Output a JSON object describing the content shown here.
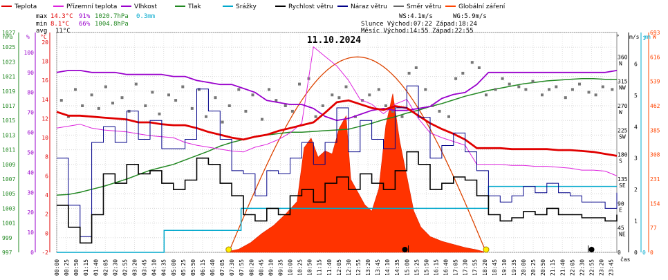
{
  "chart_data": {
    "type": "line",
    "title": "11.10.2024",
    "legend": [
      {
        "key": "temperature",
        "label": "Teplota",
        "color": "#e00000"
      },
      {
        "key": "dewpoint",
        "label": "Přízemní teplota",
        "color": "#dd22dd"
      },
      {
        "key": "humidity",
        "label": "Vlhkost",
        "color": "#9900cc"
      },
      {
        "key": "pressure",
        "label": "Tlak",
        "color": "#228822"
      },
      {
        "key": "rain",
        "label": "Srážky",
        "color": "#00a8cc"
      },
      {
        "key": "wind_speed",
        "label": "Rychlost větru",
        "color": "#000000"
      },
      {
        "key": "wind_gust",
        "label": "Náraz větru",
        "color": "#000088"
      },
      {
        "key": "wind_dir",
        "label": "Směr větru",
        "color": "#666666"
      },
      {
        "key": "radiation",
        "label": "Globální záření",
        "color": "#ff4400"
      }
    ],
    "stats": {
      "max": {
        "label": "max",
        "temp": "14.3°C",
        "hum": "91%",
        "press": "1020.7hPa",
        "rain": "0.3mm"
      },
      "min": {
        "label": "min",
        "temp": "8.1°C",
        "hum": "66%",
        "press": "1004.8hPa"
      },
      "avg": {
        "label": "avg",
        "temp": "11°C"
      }
    },
    "info": {
      "ws": "WS:4.1m/s",
      "wg": "WG:5.9m/s",
      "sun": "Slunce Východ:07:22  Západ:18:24",
      "moon": "Měsíc  Východ:14:55  Západ:22:55"
    },
    "axes": {
      "hpa": {
        "unit": "hPa",
        "ticks": [
          "1027",
          "1025",
          "1023",
          "1021",
          "1019",
          "1017",
          "1015",
          "1013",
          "1011",
          "1009",
          "1007",
          "1005",
          "1003",
          "1001",
          "999",
          "997"
        ],
        "color": "#228822"
      },
      "pct": {
        "unit": "%",
        "ticks": [
          "100",
          "90",
          "80",
          "70",
          "60",
          "50",
          "40",
          "30",
          "20",
          "10",
          "0"
        ],
        "color": "#9900cc"
      },
      "degc": {
        "unit": "°C",
        "ticks": [
          "20",
          "18",
          "16",
          "14",
          "12",
          "10",
          "8",
          "6",
          "4",
          "2",
          "0",
          "-2"
        ],
        "color": "#e00000"
      },
      "dir": {
        "unit": "°",
        "ticks": [
          "360",
          "315",
          "270",
          "225",
          "180",
          "135",
          "90",
          "45",
          "0"
        ],
        "names": [
          "N",
          "NW",
          "W",
          "SW",
          "S",
          "SE",
          "E",
          "NE",
          ""
        ]
      },
      "ms": {
        "unit": "m/s",
        "ticks": [
          "6",
          "5",
          "4",
          "3",
          "2",
          "1",
          "0"
        ]
      },
      "mm": {
        "unit": "mm",
        "ticks": [
          "1",
          "0"
        ],
        "color": "#00a8cc"
      },
      "wm2": {
        "unit": "W",
        "ticks": [
          "693",
          "616",
          "539",
          "462",
          "385",
          "308",
          "231",
          "154",
          "77",
          "0"
        ],
        "color": "#ff4400"
      },
      "time_label": "čas"
    },
    "x_tick_labels": [
      "00:00",
      "00:25",
      "00:50",
      "01:15",
      "01:40",
      "02:05",
      "02:30",
      "02:55",
      "03:20",
      "03:45",
      "04:10",
      "04:35",
      "05:00",
      "05:25",
      "05:50",
      "06:15",
      "06:40",
      "07:05",
      "07:30",
      "07:55",
      "08:20",
      "08:45",
      "09:10",
      "09:35",
      "10:00",
      "10:25",
      "10:50",
      "11:15",
      "11:40",
      "12:05",
      "12:30",
      "12:55",
      "13:20",
      "13:45",
      "14:10",
      "14:35",
      "15:00",
      "15:25",
      "15:50",
      "16:15",
      "16:40",
      "17:05",
      "17:30",
      "17:55",
      "18:20",
      "18:45",
      "19:10",
      "19:35",
      "20:00",
      "20:25",
      "20:50",
      "21:15",
      "21:40",
      "22:05",
      "22:30",
      "22:55",
      "23:20",
      "23:45"
    ],
    "series": {
      "temperature_hours": [
        0,
        0.5,
        1,
        1.5,
        2,
        2.5,
        3,
        3.5,
        4,
        4.5,
        5,
        5.5,
        6,
        6.5,
        7,
        7.5,
        8,
        8.5,
        9,
        9.5,
        10,
        10.5,
        11,
        11.5,
        12,
        12.5,
        13,
        13.5,
        14,
        14.5,
        15,
        15.5,
        16,
        16.5,
        17,
        17.5,
        18,
        18.5,
        19,
        19.5,
        20,
        20.5,
        21,
        21.5,
        22,
        22.5,
        23,
        23.5,
        24
      ],
      "temperature": [
        12.7,
        12.3,
        12.3,
        12.2,
        12.1,
        12.0,
        11.9,
        11.6,
        11.6,
        11.4,
        11.3,
        11.3,
        11.0,
        10.6,
        10.3,
        10.0,
        9.8,
        10.1,
        10.3,
        10.7,
        11.0,
        11.3,
        11.6,
        12.6,
        13.7,
        13.9,
        13.5,
        13.1,
        12.9,
        13.3,
        13.1,
        12.3,
        11.5,
        10.9,
        10.4,
        9.8,
        8.9,
        8.9,
        8.9,
        8.8,
        8.8,
        8.8,
        8.8,
        8.7,
        8.7,
        8.6,
        8.5,
        8.3,
        8.1
      ],
      "dewpoint": [
        11.0,
        11.2,
        11.4,
        11.0,
        10.8,
        10.7,
        10.6,
        10.4,
        10.2,
        10.1,
        10.0,
        9.5,
        9.2,
        9.0,
        8.8,
        8.6,
        8.5,
        9.0,
        9.3,
        9.8,
        10.5,
        11.5,
        19.5,
        18.5,
        17.5,
        16.0,
        14.0,
        13.5,
        12.5,
        13.5,
        14.0,
        12.0,
        10.5,
        10.0,
        9.6,
        9.2,
        7.2,
        7.2,
        7.2,
        7.1,
        7.1,
        7.0,
        7.0,
        6.9,
        6.8,
        6.6,
        6.6,
        6.5,
        6.0
      ],
      "humidity": [
        90,
        91,
        91,
        90,
        90,
        90,
        89,
        89,
        89,
        89,
        88,
        88,
        86,
        85,
        84,
        84,
        82,
        80,
        76,
        75,
        74,
        74,
        72,
        68,
        66,
        67,
        69,
        71,
        72,
        71,
        71,
        72,
        73,
        77,
        79,
        80,
        84,
        90,
        90,
        90,
        90,
        90,
        90,
        90,
        90,
        90,
        90,
        90,
        91
      ],
      "pressure": [
        1004.8,
        1004.9,
        1005.2,
        1005.6,
        1006.0,
        1006.5,
        1007.0,
        1007.6,
        1008.2,
        1008.6,
        1009.0,
        1009.6,
        1010.2,
        1010.8,
        1011.5,
        1012.0,
        1012.4,
        1012.8,
        1013.0,
        1013.2,
        1013.4,
        1013.4,
        1013.5,
        1013.6,
        1013.7,
        1013.8,
        1014.2,
        1014.6,
        1015.1,
        1015.5,
        1016.0,
        1016.4,
        1016.9,
        1017.3,
        1017.8,
        1018.3,
        1018.7,
        1019.1,
        1019.4,
        1019.7,
        1020.0,
        1020.2,
        1020.4,
        1020.5,
        1020.6,
        1020.7,
        1020.7,
        1020.6,
        1020.6
      ],
      "rain_steps": [
        [
          0,
          0.0
        ],
        [
          4.6,
          0.1
        ],
        [
          7.9,
          0.2
        ],
        [
          18.5,
          0.3
        ],
        [
          24,
          0.3
        ]
      ],
      "wind_speed_hours": [
        0,
        0.5,
        1,
        1.5,
        2,
        2.5,
        3,
        3.5,
        4,
        4.5,
        5,
        5.5,
        6,
        6.5,
        7,
        7.5,
        8,
        8.5,
        9,
        9.5,
        10,
        10.5,
        11,
        11.5,
        12,
        12.5,
        13,
        13.5,
        14,
        14.5,
        15,
        15.5,
        16,
        16.5,
        17,
        17.5,
        18,
        18.5,
        19,
        19.5,
        20,
        20.5,
        21,
        21.5,
        22,
        22.5,
        23,
        23.5,
        24
      ],
      "wind_speed": [
        1.5,
        0.8,
        0.3,
        1.2,
        2.5,
        2.2,
        2.8,
        2.5,
        2.6,
        2.2,
        2.0,
        2.3,
        3.0,
        2.8,
        2.2,
        1.8,
        1.2,
        1.0,
        1.4,
        1.2,
        1.8,
        2.0,
        1.6,
        2.2,
        2.4,
        2.0,
        2.5,
        2.2,
        2.0,
        2.6,
        3.2,
        2.8,
        2.0,
        2.2,
        2.4,
        2.3,
        1.8,
        1.2,
        1.0,
        1.1,
        1.3,
        1.2,
        1.4,
        1.2,
        1.2,
        1.1,
        1.1,
        1.0,
        1.2
      ],
      "wind_gust": [
        3.0,
        1.5,
        0.5,
        3.5,
        4.0,
        3.5,
        4.5,
        3.6,
        4.2,
        3.3,
        3.3,
        3.6,
        5.2,
        4.5,
        3.6,
        2.6,
        2.5,
        1.8,
        2.6,
        2.5,
        3.0,
        3.5,
        2.8,
        3.5,
        4.6,
        3.2,
        4.2,
        3.6,
        3.3,
        4.6,
        5.3,
        4.3,
        3.0,
        3.4,
        3.8,
        3.2,
        2.6,
        1.8,
        1.6,
        1.8,
        2.1,
        1.9,
        2.2,
        1.9,
        1.8,
        1.6,
        1.6,
        1.4,
        1.9
      ],
      "wind_dir_hours": [
        0.2,
        0.5,
        0.8,
        1.1,
        1.5,
        1.8,
        2.1,
        2.4,
        2.8,
        3.1,
        3.4,
        3.8,
        4.1,
        4.4,
        4.8,
        5.1,
        5.4,
        5.8,
        6.1,
        6.4,
        6.8,
        7.1,
        7.4,
        7.8,
        8.1,
        8.4,
        8.8,
        9.1,
        9.4,
        9.8,
        10.1,
        10.4,
        10.8,
        11.1,
        11.4,
        11.8,
        12.1,
        12.4,
        12.8,
        13.1,
        13.4,
        13.8,
        14.1,
        14.4,
        14.8,
        15.1,
        15.4,
        15.8,
        16.1,
        16.4,
        16.8,
        17.1,
        17.4,
        17.8,
        18.1,
        18.4,
        18.8,
        19.1,
        19.4,
        19.8,
        20.1,
        20.4,
        20.8,
        21.1,
        21.4,
        21.8,
        22.1,
        22.4,
        22.8,
        23.1,
        23.4,
        23.8
      ],
      "wind_dir": [
        280,
        250,
        300,
        270,
        290,
        265,
        305,
        275,
        285,
        260,
        310,
        270,
        295,
        255,
        290,
        280,
        305,
        265,
        300,
        250,
        285,
        240,
        270,
        300,
        260,
        290,
        245,
        300,
        280,
        270,
        260,
        310,
        320,
        250,
        270,
        290,
        285,
        305,
        250,
        280,
        290,
        300,
        270,
        260,
        250,
        330,
        340,
        300,
        270,
        260,
        250,
        320,
        330,
        350,
        340,
        290,
        300,
        320,
        310,
        305,
        300,
        315,
        290,
        300,
        305,
        285,
        300,
        310,
        295,
        290,
        305,
        300
      ],
      "radiation_hours": [
        7.3,
        7.8,
        8.3,
        8.8,
        9.3,
        9.8,
        10.3,
        10.6,
        10.9,
        11.2,
        11.5,
        11.8,
        12.1,
        12.4,
        12.6,
        12.9,
        13.2,
        13.5,
        13.8,
        14.1,
        14.4,
        14.7,
        15.0,
        15.3,
        15.6,
        16.0,
        16.5,
        17.0,
        17.5,
        18.0,
        18.3
      ],
      "radiation": [
        2,
        10,
        30,
        60,
        85,
        120,
        160,
        330,
        360,
        300,
        320,
        310,
        390,
        430,
        230,
        190,
        150,
        130,
        200,
        400,
        500,
        350,
        240,
        130,
        80,
        50,
        35,
        25,
        15,
        8,
        2
      ],
      "radiation_theoretical_max": 616,
      "sun_events": [
        {
          "type": "sunrise",
          "hour": 7.37
        },
        {
          "type": "sunset",
          "hour": 18.4
        }
      ],
      "moon_events": [
        {
          "type": "moonrise",
          "hour": 14.92
        },
        {
          "type": "moonset",
          "hour": 22.92
        }
      ]
    }
  }
}
